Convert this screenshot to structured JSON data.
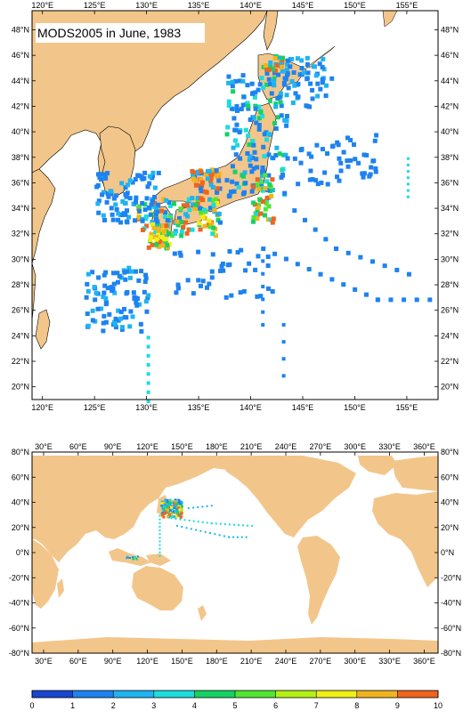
{
  "top_map": {
    "title": "MODS2005 in June, 1983",
    "lon_ticks": [
      "120°E",
      "125°E",
      "130°E",
      "135°E",
      "140°E",
      "145°E",
      "150°E",
      "155°E"
    ],
    "lat_ticks": [
      "20°N",
      "22°N",
      "24°N",
      "26°N",
      "28°N",
      "30°N",
      "32°N",
      "34°N",
      "36°N",
      "38°N",
      "40°N",
      "42°N",
      "44°N",
      "46°N",
      "48°N"
    ],
    "lon_range": [
      119,
      158
    ],
    "lat_range": [
      19,
      49.5
    ],
    "land_color": "#f2c68a",
    "ocean_color": "#ffffff"
  },
  "bottom_map": {
    "lon_ticks": [
      "30°E",
      "60°E",
      "90°E",
      "120°E",
      "150°E",
      "180°E",
      "210°E",
      "240°E",
      "270°E",
      "300°E",
      "330°E",
      "360°E"
    ],
    "lat_ticks": [
      "-80°N",
      "-60°N",
      "-40°N",
      "-20°N",
      "0°N",
      "20°N",
      "40°N",
      "60°N",
      "80°N"
    ],
    "lon_range": [
      20,
      372
    ],
    "lat_range": [
      -80,
      80
    ],
    "land_color": "#f2c68a",
    "ocean_color": "#ffffff"
  },
  "colorbar": {
    "labels": [
      "0",
      "1",
      "2",
      "3",
      "4",
      "5",
      "6",
      "7",
      "8",
      "9",
      "10"
    ],
    "colors": [
      "#1846d2",
      "#1e82f0",
      "#1eb4f0",
      "#1edcdc",
      "#14d264",
      "#50e632",
      "#b4f014",
      "#f0f014",
      "#f0b41e",
      "#f0641e"
    ]
  }
}
